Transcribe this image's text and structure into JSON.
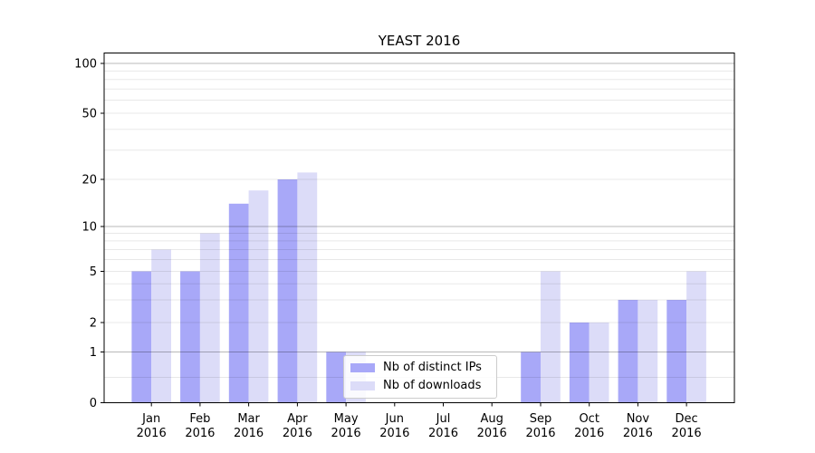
{
  "figure": {
    "kind": "matplotlib-style bar chart screenshot"
  },
  "chart_data": {
    "type": "bar",
    "title": "YEAST 2016",
    "categories": [
      "Jan 2016",
      "Feb 2016",
      "Mar 2016",
      "Apr 2016",
      "May 2016",
      "Jun 2016",
      "Jul 2016",
      "Aug 2016",
      "Sep 2016",
      "Oct 2016",
      "Nov 2016",
      "Dec 2016"
    ],
    "series": [
      {
        "name": "Nb of distinct IPs",
        "color": "#a8a8f8",
        "values": [
          5,
          5,
          14,
          20,
          1,
          0,
          0,
          0,
          1,
          2,
          3,
          3
        ]
      },
      {
        "name": "Nb of downloads",
        "color": "#dcdcf8",
        "values": [
          7,
          9,
          17,
          22,
          1,
          0,
          0,
          0,
          5,
          2,
          3,
          5
        ]
      }
    ],
    "yticks": [
      0,
      1,
      2,
      5,
      10,
      20,
      50,
      100
    ],
    "yscale": "log above 1, linear 0-1",
    "ylim": [
      0,
      120
    ],
    "xlabel": "",
    "ylabel": "",
    "grid": "horizontal major+minor",
    "legend_position": "lower center"
  },
  "colors": {
    "distinct_ips": "#a8a8f8",
    "downloads": "#dcdcf8",
    "major_grid": "rgba(0,0,0,0.28)",
    "minor_grid": "rgba(0,0,0,0.09)",
    "frame": "#000000"
  }
}
